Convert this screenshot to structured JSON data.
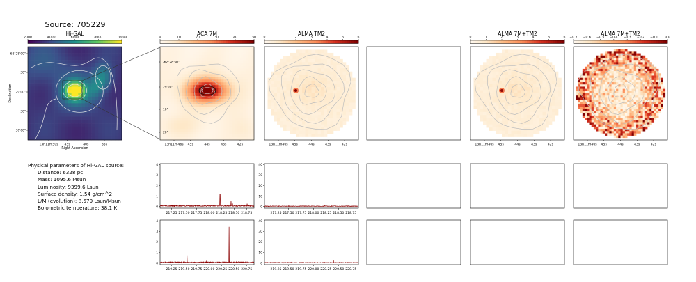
{
  "source_title": "Source: 705229",
  "params": {
    "heading": "Physical parameters of Hi-GAL source:",
    "lines": [
      "Distance: 6328 pc",
      "Mass: 1095.6 Msun",
      "Luminosity: 9399.6 Lsun",
      "Surface density: 1.54 g/cm^2",
      "L/M (evolution): 8.579 Lsun/Msun",
      "Bolometric temperature: 38.1 K"
    ]
  },
  "colors": {
    "spectrum": "#8b0000",
    "contour": "#c8c8c8",
    "zoom_line": "#333333"
  },
  "chart_data": [
    {
      "type": "heatmap",
      "title": "Hi-GAL",
      "colormap": "viridis",
      "colorbar_ticks": [
        "2000",
        "4000",
        "6000",
        "8000",
        "10000"
      ],
      "colorbar_range": [
        1200,
        11500
      ],
      "xlabel": "Right Ascension",
      "ylabel": "Declination",
      "x_ticks": [
        "13h11m50s",
        "45s",
        "40s",
        "35s"
      ],
      "y_ticks": [
        "-62°28'00\"",
        "30\"",
        "29'00\"",
        "30\"",
        "30'00\""
      ]
    },
    {
      "type": "heatmap",
      "title": "ACA 7M",
      "colormap": "OrRd",
      "colorbar_ticks": [
        "0",
        "10",
        "20",
        "30",
        "40",
        "50"
      ],
      "colorbar_range": [
        0,
        53
      ],
      "x_ticks": [
        "13h11m46s",
        "45s",
        "44s",
        "43s",
        "42s"
      ],
      "y_ticks": [
        "-62°28'50\"",
        "29'00\"",
        "10\"",
        "20\""
      ]
    },
    {
      "type": "heatmap",
      "title": "ALMA TM2",
      "colormap": "OrRd",
      "colorbar_ticks": [
        "0",
        "1",
        "2",
        "3",
        "4",
        "5",
        "6"
      ],
      "colorbar_range": [
        0,
        6.6
      ],
      "x_ticks": [
        "13h11m46s",
        "45s",
        "44s",
        "43s",
        "42s"
      ]
    },
    {
      "type": "heatmap",
      "title": "ALMA 7M+TM2",
      "colormap": "OrRd",
      "colorbar_ticks": [
        "0",
        "1",
        "2",
        "3",
        "4",
        "5",
        "6"
      ],
      "colorbar_range": [
        0,
        6.6
      ],
      "x_ticks": [
        "13h11m46s",
        "45s",
        "44s",
        "43s",
        "42s"
      ]
    },
    {
      "type": "heatmap",
      "title": "ALMA 7M+TM2",
      "colormap": "OrRd",
      "colorbar_ticks": [
        "−0.7",
        "−0.6",
        "−0.5",
        "−0.4",
        "−0.3",
        "−0.2",
        "−0.1",
        "0.0"
      ],
      "colorbar_range": [
        -0.72,
        0.0
      ],
      "x_ticks": [
        "13h11m46s",
        "45s",
        "44s",
        "43s",
        "42s"
      ]
    },
    {
      "type": "line",
      "name": "ACA 7M spectrum (window 1)",
      "x_ticks": [
        "217.25",
        "217.50",
        "217.75",
        "218.00",
        "218.25",
        "218.50",
        "218.75"
      ],
      "xlim": [
        217.02,
        218.9
      ],
      "y_ticks": [
        "0",
        "1",
        "2",
        "3",
        "4"
      ],
      "ylim": [
        -0.15,
        4.1
      ],
      "baseline": 0.07,
      "peaks": [
        {
          "x": 218.22,
          "y": 1.2
        },
        {
          "x": 218.44,
          "y": 0.55
        },
        {
          "x": 218.47,
          "y": 0.3
        },
        {
          "x": 218.76,
          "y": 0.28
        },
        {
          "x": 217.82,
          "y": 0.16
        },
        {
          "x": 218.15,
          "y": 0.14
        }
      ]
    },
    {
      "type": "line",
      "name": "ALMA TM2 spectrum (window 1)",
      "x_ticks": [
        "217.25",
        "217.50",
        "217.75",
        "218.00",
        "218.25",
        "218.50",
        "218.75"
      ],
      "xlim": [
        217.02,
        218.9
      ],
      "y_ticks": [
        "0",
        "10",
        "20",
        "30",
        "40"
      ],
      "ylim": [
        -1.5,
        41
      ],
      "baseline": 0.4,
      "peaks": [
        {
          "x": 218.22,
          "y": 1.4
        },
        {
          "x": 218.44,
          "y": 0.9
        }
      ]
    },
    {
      "type": "line",
      "name": "ACA 7M spectrum (window 2)",
      "x_ticks": [
        "219.25",
        "219.50",
        "219.75",
        "220.00",
        "220.25",
        "220.50",
        "220.75"
      ],
      "xlim": [
        219.02,
        220.9
      ],
      "y_ticks": [
        "0",
        "1",
        "2",
        "3",
        "4"
      ],
      "ylim": [
        -0.15,
        4.1
      ],
      "baseline": 0.07,
      "peaks": [
        {
          "x": 220.4,
          "y": 3.45
        },
        {
          "x": 219.56,
          "y": 0.75
        },
        {
          "x": 219.95,
          "y": 0.22
        },
        {
          "x": 220.6,
          "y": 0.15
        }
      ]
    },
    {
      "type": "line",
      "name": "ALMA TM2 spectrum (window 2)",
      "x_ticks": [
        "219.25",
        "219.50",
        "219.75",
        "220.00",
        "220.25",
        "220.50",
        "220.75"
      ],
      "xlim": [
        219.02,
        220.9
      ],
      "y_ticks": [
        "0",
        "10",
        "20",
        "30",
        "40"
      ],
      "ylim": [
        -1.5,
        41
      ],
      "baseline": 0.4,
      "peaks": [
        {
          "x": 220.4,
          "y": 3.0
        },
        {
          "x": 219.56,
          "y": 0.8
        }
      ]
    }
  ]
}
